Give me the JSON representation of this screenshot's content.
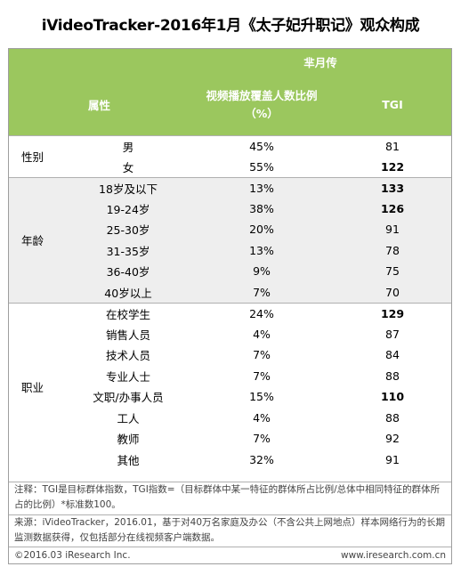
{
  "title": "iVideoTracker-2016年1月《太子妃升职记》观众构成",
  "header": {
    "attr": "属性",
    "show": "芈月传",
    "coverage_line1": "视频播放覆盖人数比例",
    "coverage_line2": "（%）",
    "tgi": "TGI"
  },
  "groups": [
    {
      "label": "性别",
      "rows": [
        {
          "name": "男",
          "pct": "45%",
          "tgi": "81",
          "bold": false
        },
        {
          "name": "女",
          "pct": "55%",
          "tgi": "122",
          "bold": true
        }
      ]
    },
    {
      "label": "年龄",
      "rows": [
        {
          "name": "18岁及以下",
          "pct": "13%",
          "tgi": "133",
          "bold": true
        },
        {
          "name": "19-24岁",
          "pct": "38%",
          "tgi": "126",
          "bold": true
        },
        {
          "name": "25-30岁",
          "pct": "20%",
          "tgi": "91",
          "bold": false
        },
        {
          "name": "31-35岁",
          "pct": "13%",
          "tgi": "78",
          "bold": false
        },
        {
          "name": "36-40岁",
          "pct": "9%",
          "tgi": "75",
          "bold": false
        },
        {
          "name": "40岁以上",
          "pct": "7%",
          "tgi": "70",
          "bold": false
        }
      ]
    },
    {
      "label": "职业",
      "rows": [
        {
          "name": "在校学生",
          "pct": "24%",
          "tgi": "129",
          "bold": true
        },
        {
          "name": "销售人员",
          "pct": "4%",
          "tgi": "87",
          "bold": false
        },
        {
          "name": "技术人员",
          "pct": "7%",
          "tgi": "84",
          "bold": false
        },
        {
          "name": "专业人士",
          "pct": "7%",
          "tgi": "88",
          "bold": false
        },
        {
          "name": "文职/办事人员",
          "pct": "15%",
          "tgi": "110",
          "bold": true
        },
        {
          "name": "工人",
          "pct": "4%",
          "tgi": "88",
          "bold": false
        },
        {
          "name": "教师",
          "pct": "7%",
          "tgi": "92",
          "bold": false
        },
        {
          "name": "其他",
          "pct": "32%",
          "tgi": "91",
          "bold": false
        }
      ]
    }
  ],
  "notes": {
    "note1": "注释：TGI是目标群体指数，TGI指数=（目标群体中某一特征的群体所占比例/总体中相同特征的群体所占的比例）*标准数100。",
    "note2": "来源：iVideoTracker，2016.01，基于对40万名家庭及办公（不含公共上网地点）样本网络行为的长期监测数据获得，仅包括部分在线视频客户端数据。"
  },
  "footer": {
    "copyright": "©2016.03 iResearch Inc.",
    "website": "www.iresearch.com.cn"
  }
}
